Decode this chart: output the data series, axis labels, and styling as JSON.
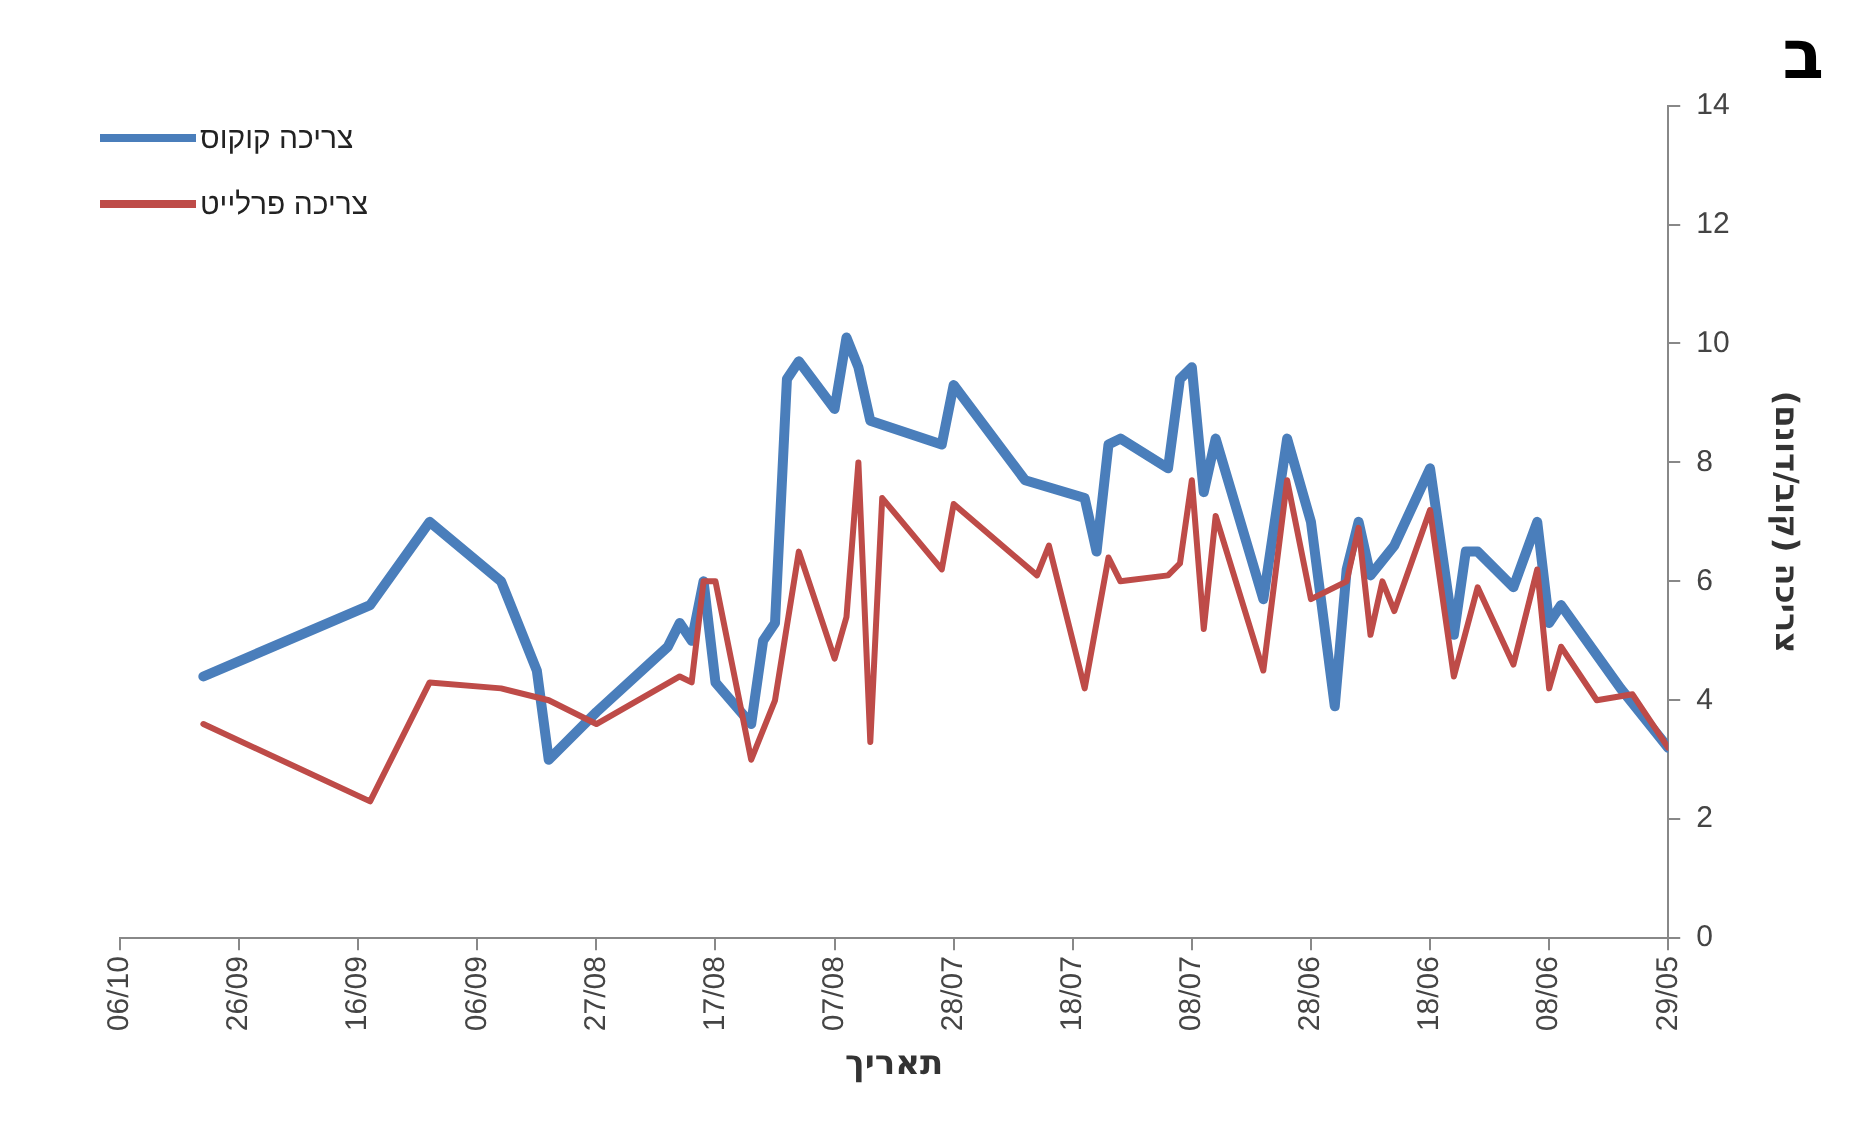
{
  "chart_data": {
    "type": "line",
    "title": "ב",
    "xlabel": "תאריך",
    "ylabel": "צריכה (קוב/דונם)",
    "xlim": [
      "--10-06",
      "--05-29"
    ],
    "xticks": [
      {
        "value": "--10-06",
        "label": "06/10"
      },
      {
        "value": "--09-26",
        "label": "26/09"
      },
      {
        "value": "--09-16",
        "label": "16/09"
      },
      {
        "value": "--09-06",
        "label": "06/09"
      },
      {
        "value": "--08-27",
        "label": "27/08"
      },
      {
        "value": "--08-17",
        "label": "17/08"
      },
      {
        "value": "--08-07",
        "label": "07/08"
      },
      {
        "value": "--07-28",
        "label": "28/07"
      },
      {
        "value": "--07-18",
        "label": "18/07"
      },
      {
        "value": "--07-08",
        "label": "08/07"
      },
      {
        "value": "--06-28",
        "label": "28/06"
      },
      {
        "value": "--06-18",
        "label": "18/06"
      },
      {
        "value": "--06-08",
        "label": "08/06"
      },
      {
        "value": "--05-29",
        "label": "29/05"
      }
    ],
    "ylim": [
      0,
      14
    ],
    "yticks": [
      0,
      2,
      4,
      6,
      8,
      10,
      12,
      14
    ],
    "grid": false,
    "legend": "top left",
    "marker": "none",
    "line_style": "solid",
    "series": [
      {
        "name": "צריכה קוקוס",
        "color": "#4a7ebb",
        "x": [
          "--09-29",
          "--09-15",
          "--09-10",
          "--09-04",
          "--09-01",
          "--08-31",
          "--08-27",
          "--08-21",
          "--08-20",
          "--08-19",
          "--08-18",
          "--08-17",
          "--08-14",
          "--08-13",
          "--08-12",
          "--08-11",
          "--08-10",
          "--08-07",
          "--08-06",
          "--08-05",
          "--08-04",
          "--07-29",
          "--07-28",
          "--07-22",
          "--07-17",
          "--07-16",
          "--07-15",
          "--07-14",
          "--07-10",
          "--07-09",
          "--07-08",
          "--07-07",
          "--07-06",
          "--07-02",
          "--06-30",
          "--06-28",
          "--06-26",
          "--06-25",
          "--06-24",
          "--06-23",
          "--06-21",
          "--06-18",
          "--06-16",
          "--06-15",
          "--06-14",
          "--06-11",
          "--06-09",
          "--06-08",
          "--06-07",
          "--06-02",
          "--05-29"
        ],
        "values": [
          4.4,
          5.6,
          7.0,
          6.0,
          4.5,
          3.0,
          3.8,
          4.9,
          5.3,
          5.0,
          6.0,
          4.3,
          3.6,
          5.0,
          5.3,
          9.4,
          9.7,
          8.9,
          10.1,
          9.6,
          8.7,
          8.3,
          9.3,
          7.7,
          7.4,
          6.5,
          8.3,
          8.4,
          7.9,
          9.4,
          9.6,
          7.5,
          8.4,
          5.7,
          8.4,
          7.0,
          3.9,
          6.2,
          7.0,
          6.1,
          6.6,
          7.9,
          5.1,
          6.5,
          6.5,
          5.9,
          7.0,
          5.3,
          5.6,
          4.2,
          3.2
        ]
      },
      {
        "name": "צריכה פרלייט",
        "color": "#be4b48",
        "x": [
          "--09-29",
          "--09-15",
          "--09-10",
          "--09-04",
          "--08-31",
          "--08-27",
          "--08-20",
          "--08-19",
          "--08-18",
          "--08-17",
          "--08-14",
          "--08-12",
          "--08-10",
          "--08-07",
          "--08-06",
          "--08-05",
          "--08-04",
          "--08-03",
          "--07-29",
          "--07-28",
          "--07-21",
          "--07-20",
          "--07-17",
          "--07-15",
          "--07-14",
          "--07-10",
          "--07-09",
          "--07-08",
          "--07-07",
          "--07-06",
          "--07-02",
          "--06-30",
          "--06-28",
          "--06-25",
          "--06-24",
          "--06-23",
          "--06-22",
          "--06-21",
          "--06-18",
          "--06-16",
          "--06-14",
          "--06-11",
          "--06-09",
          "--06-08",
          "--06-07",
          "--06-04",
          "--06-01",
          "--05-29"
        ],
        "values": [
          3.6,
          2.3,
          4.3,
          4.2,
          4.0,
          3.6,
          4.4,
          4.3,
          6.0,
          6.0,
          3.0,
          4.0,
          6.5,
          4.7,
          5.4,
          8.0,
          3.3,
          7.4,
          6.2,
          7.3,
          6.1,
          6.6,
          4.2,
          6.4,
          6.0,
          6.1,
          6.3,
          7.7,
          5.2,
          7.1,
          4.5,
          7.7,
          5.7,
          6.0,
          6.9,
          5.1,
          6.0,
          5.5,
          7.2,
          4.4,
          5.9,
          4.6,
          6.2,
          4.2,
          4.9,
          4.0,
          4.1,
          3.2
        ]
      }
    ]
  }
}
